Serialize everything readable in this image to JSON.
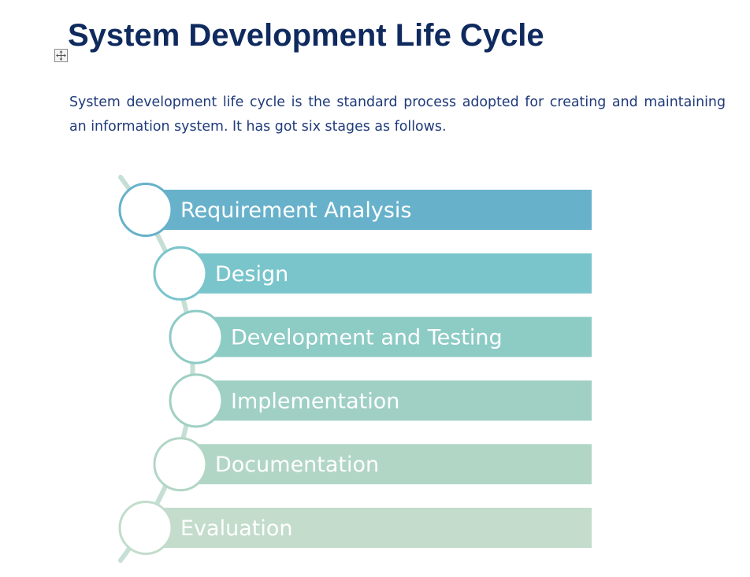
{
  "document": {
    "title": "System Development Life Cycle",
    "intro": "System development life cycle is the standard process adopted for creating and maintaining an information system. It has got six stages as follows."
  },
  "diagram": {
    "steps": [
      {
        "label": "Requirement Analysis",
        "color": "#67b1cb"
      },
      {
        "label": "Design",
        "color": "#7ac5cc"
      },
      {
        "label": "Development and Testing",
        "color": "#8dcbc5"
      },
      {
        "label": "Implementation",
        "color": "#9fd0c3"
      },
      {
        "label": "Documentation",
        "color": "#b2d6c6"
      },
      {
        "label": "Evaluation",
        "color": "#c3dccc"
      }
    ],
    "arc_color": "#c6dfd5"
  }
}
